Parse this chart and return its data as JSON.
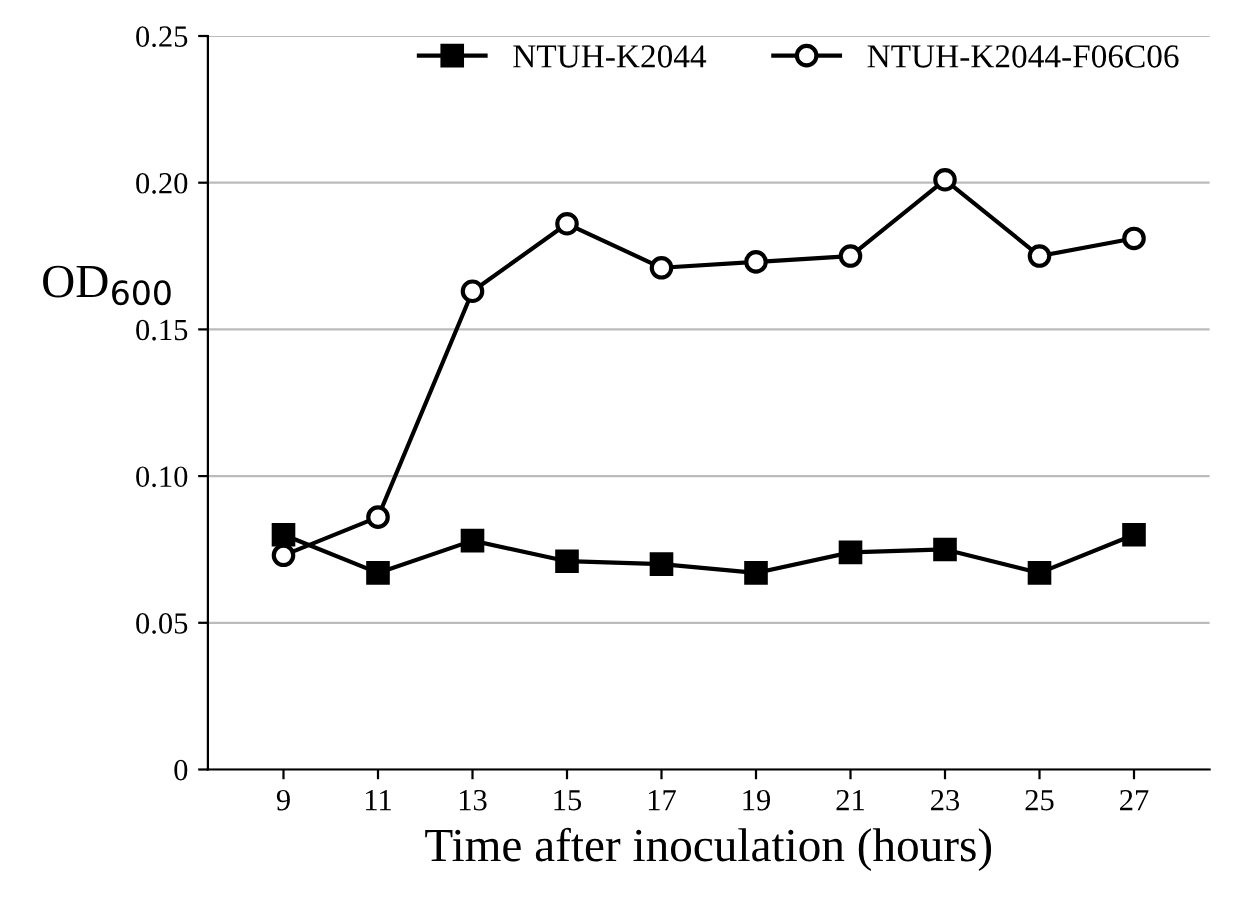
{
  "chart_data": {
    "type": "line",
    "xlabel": "Time after inoculation (hours)",
    "ylabel": "OD$_{600}$",
    "categories": [
      "9",
      "11",
      "13",
      "15",
      "17",
      "19",
      "21",
      "23",
      "25",
      "27"
    ],
    "series": [
      {
        "name": "NTUH-K2044",
        "color": "#000000",
        "marker": "square",
        "values": [
          0.08,
          0.067,
          0.078,
          0.071,
          0.07,
          0.067,
          0.074,
          0.075,
          0.067,
          0.08
        ]
      },
      {
        "name": "NTUH-K2044-F06C06",
        "color": "#000000",
        "marker": "circle",
        "values": [
          0.073,
          0.086,
          0.163,
          0.186,
          0.171,
          0.173,
          0.175,
          0.201,
          0.175,
          0.181
        ]
      }
    ],
    "ylim": [
      0,
      0.25
    ],
    "yticks": [
      0,
      {
        "value": 0.05,
        "label": "0.05"
      },
      {
        "value": 0.1,
        "label": "0.10"
      },
      {
        "value": 0.15,
        "label": "0.15"
      },
      {
        "value": 0.2,
        "label": "0.20"
      },
      {
        "value": 0.25,
        "label": "0.25"
      }
    ],
    "grid": "y",
    "legend": "top right",
    "line_style": "solid"
  }
}
